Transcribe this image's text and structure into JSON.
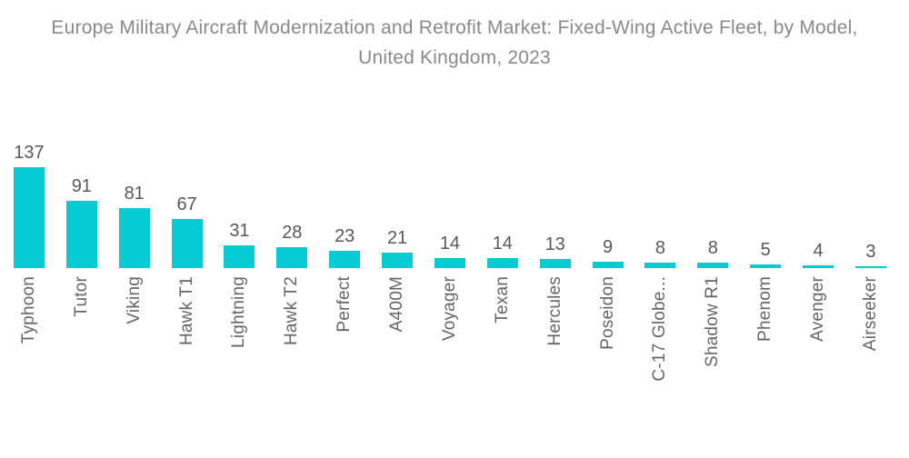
{
  "chart_data": {
    "type": "bar",
    "title": "Europe Military Aircraft Modernization and Retrofit Market: Fixed-Wing Active Fleet, by Model, United Kingdom, 2023",
    "categories": [
      "Typhoon",
      "Tutor",
      "Viking",
      "Hawk T1",
      "Lightning",
      "Hawk T2",
      "Perfect",
      "A400M",
      "Voyager",
      "Texan",
      "Hercules",
      "Poseidon",
      "C-17 Globe...",
      "Shadow R1",
      "Phenom",
      "Avenger",
      "Airseeker"
    ],
    "values": [
      137,
      91,
      81,
      67,
      31,
      28,
      23,
      21,
      14,
      14,
      13,
      9,
      8,
      8,
      5,
      4,
      3
    ],
    "value_labels_shown": true,
    "orientation": "vertical",
    "xlabel": "",
    "ylabel": "",
    "ylim": [
      0,
      137
    ],
    "grid": false,
    "legend": "none",
    "axis_lines": "none",
    "colors": {
      "bar": "#06cbd2",
      "value_label": "#58595b",
      "category_label": "#656668",
      "title": "#8a8a8a",
      "background": "#ffffff"
    }
  }
}
